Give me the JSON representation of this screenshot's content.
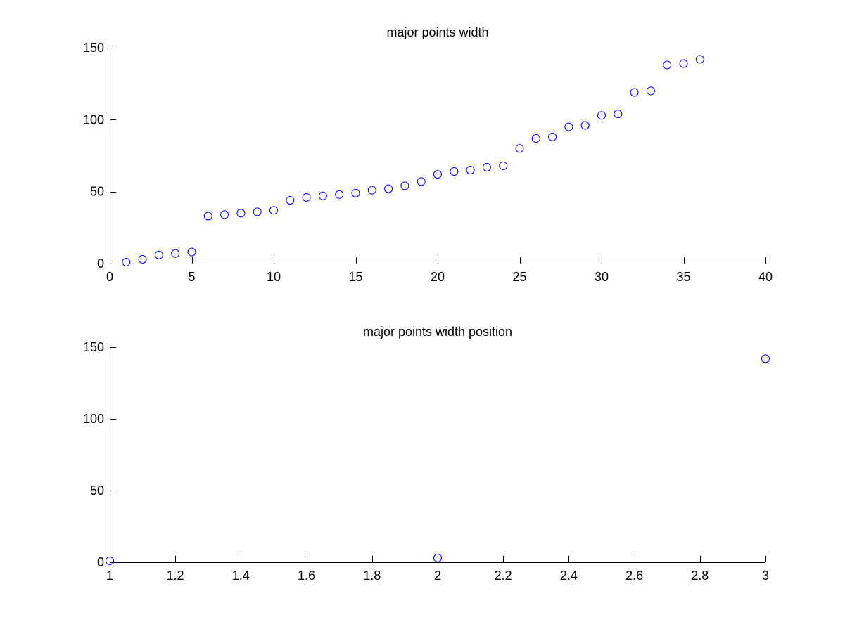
{
  "figure": {
    "background": "#ffffff"
  },
  "chart_data": [
    {
      "type": "scatter",
      "title": "major points width",
      "xlabel": "",
      "ylabel": "",
      "xlim": [
        0,
        40
      ],
      "ylim": [
        0,
        150
      ],
      "xticks": [
        0,
        5,
        10,
        15,
        20,
        25,
        30,
        35,
        40
      ],
      "xtick_labels": [
        "0",
        "5",
        "10",
        "15",
        "20",
        "25",
        "30",
        "35",
        "40"
      ],
      "yticks": [
        0,
        50,
        100,
        150
      ],
      "ytick_labels": [
        "0",
        "50",
        "100",
        "150"
      ],
      "grid": false,
      "marker": "circle-open",
      "color": "#0000ff",
      "series": [
        {
          "x": [
            1,
            2,
            3,
            4,
            5,
            6,
            7,
            8,
            9,
            10,
            11,
            12,
            13,
            14,
            15,
            16,
            17,
            18,
            19,
            20,
            21,
            22,
            23,
            24,
            25,
            26,
            27,
            28,
            29,
            30,
            31,
            32,
            33,
            34,
            35,
            36
          ],
          "y": [
            1,
            3,
            6,
            7,
            8,
            33,
            34,
            35,
            36,
            37,
            44,
            46,
            47,
            48,
            49,
            51,
            52,
            54,
            57,
            62,
            64,
            65,
            67,
            68,
            80,
            87,
            88,
            95,
            96,
            103,
            104,
            119,
            120,
            138,
            139,
            142
          ]
        }
      ]
    },
    {
      "type": "scatter",
      "title": "major points width position",
      "xlabel": "",
      "ylabel": "",
      "xlim": [
        1,
        3
      ],
      "ylim": [
        0,
        150
      ],
      "xticks": [
        1,
        1.2,
        1.4,
        1.6,
        1.8,
        2,
        2.2,
        2.4,
        2.6,
        2.8,
        3
      ],
      "xtick_labels": [
        "1",
        "1.2",
        "1.4",
        "1.6",
        "1.8",
        "2",
        "2.2",
        "2.4",
        "2.6",
        "2.8",
        "3"
      ],
      "yticks": [
        0,
        50,
        100,
        150
      ],
      "ytick_labels": [
        "0",
        "50",
        "100",
        "150"
      ],
      "grid": false,
      "marker": "circle-open",
      "color": "#0000ff",
      "series": [
        {
          "x": [
            1,
            2,
            3
          ],
          "y": [
            1,
            3,
            142
          ]
        }
      ]
    }
  ]
}
